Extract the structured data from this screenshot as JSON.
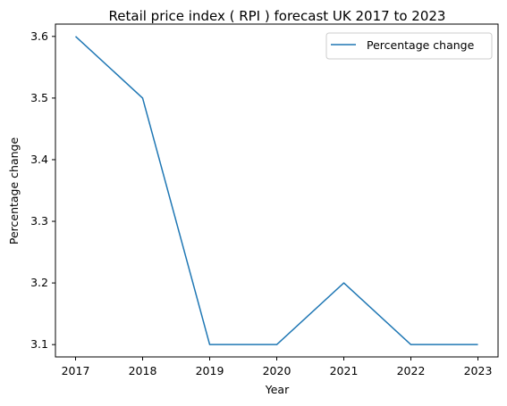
{
  "chart_data": {
    "type": "line",
    "title": "Retail price index ( RPI ) forecast UK 2017 to 2023",
    "xlabel": "Year",
    "ylabel": "Percentage change",
    "x": [
      "2017",
      "2018",
      "2019",
      "2020",
      "2021",
      "2022",
      "2023"
    ],
    "series": [
      {
        "name": "Percentage change",
        "values": [
          3.6,
          3.5,
          3.1,
          3.1,
          3.2,
          3.1,
          3.1
        ],
        "color": "#1f77b4"
      }
    ],
    "yticks": [
      "3.1",
      "3.2",
      "3.3",
      "3.4",
      "3.5",
      "3.6"
    ],
    "ylim": [
      3.08,
      3.62
    ],
    "grid": false,
    "legend_position": "top-right"
  }
}
